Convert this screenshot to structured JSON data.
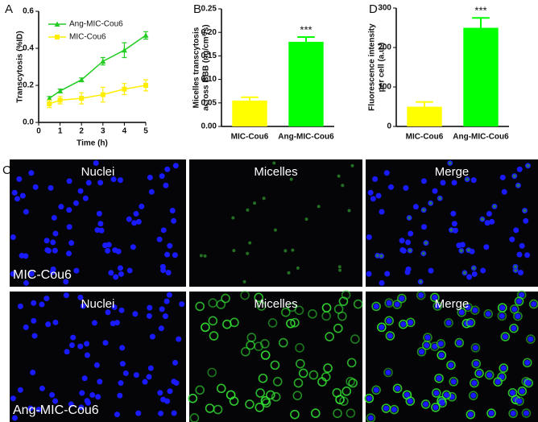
{
  "chart_data": [
    {
      "type": "line",
      "panel_label": "A",
      "x_label": "Time (h)",
      "y_label": [
        "Transcytosis (%ID)"
      ],
      "xlim": [
        0,
        5
      ],
      "xticks": [
        0,
        1,
        2,
        3,
        4,
        5
      ],
      "ylim": [
        0,
        0.6
      ],
      "yticks": [
        {
          "value": 0,
          "label": "0.0"
        },
        {
          "value": 0.2,
          "label": "0.2"
        },
        {
          "value": 0.4,
          "label": "0.4"
        },
        {
          "value": 0.6,
          "label": "0.6"
        }
      ],
      "x": [
        0.5,
        1,
        2,
        3,
        4,
        5
      ],
      "series": [
        {
          "name": "Ang-MIC-Cou6",
          "color": "#22cc22",
          "marker": "triangle",
          "values": [
            0.13,
            0.17,
            0.23,
            0.33,
            0.39,
            0.47
          ],
          "errors": [
            0.01,
            0.01,
            0.01,
            0.02,
            0.04,
            0.02
          ]
        },
        {
          "name": "MIC-Cou6",
          "color": "#ffee00",
          "marker": "square",
          "values": [
            0.1,
            0.12,
            0.13,
            0.15,
            0.18,
            0.2
          ],
          "errors": [
            0.02,
            0.02,
            0.03,
            0.04,
            0.03,
            0.03
          ]
        }
      ]
    },
    {
      "type": "bar",
      "panel_label": "B",
      "y_label": [
        "Micelles transcytosis",
        "across BBB  (ng/cm²/s)"
      ],
      "ylim": [
        0,
        0.25
      ],
      "yticks": [
        {
          "value": 0,
          "label": "0.00"
        },
        {
          "value": 0.05,
          "label": "0.05"
        },
        {
          "value": 0.1,
          "label": "0.10"
        },
        {
          "value": 0.15,
          "label": "0.15"
        },
        {
          "value": 0.2,
          "label": "0.20"
        },
        {
          "value": 0.25,
          "label": "0.25"
        }
      ],
      "categories": [
        "MIC-Cou6",
        "Ang-MIC-Cou6"
      ],
      "values": [
        0.055,
        0.18
      ],
      "errors": [
        0.007,
        0.01
      ],
      "colors": [
        "#ffff00",
        "#00ff00"
      ],
      "annotation": "***"
    },
    {
      "type": "bar",
      "panel_label": "D",
      "y_label": [
        "Fluorescence intensity",
        "per cell (a.u.)"
      ],
      "ylim": [
        0,
        300
      ],
      "yticks": [
        0,
        100,
        200,
        300
      ],
      "categories": [
        "MIC-Cou6",
        "Ang-MIC-Cou6"
      ],
      "values": [
        50,
        250
      ],
      "errors": [
        12,
        25
      ],
      "colors": [
        "#ffff00",
        "#00ff00"
      ],
      "annotation": "***"
    }
  ],
  "panel_c": {
    "panel_label": "C",
    "columns": [
      "Nuclei",
      "Micelles",
      "Merge"
    ],
    "rows": [
      "MIC-Cou6",
      "Ang-MIC-Cou6"
    ]
  }
}
